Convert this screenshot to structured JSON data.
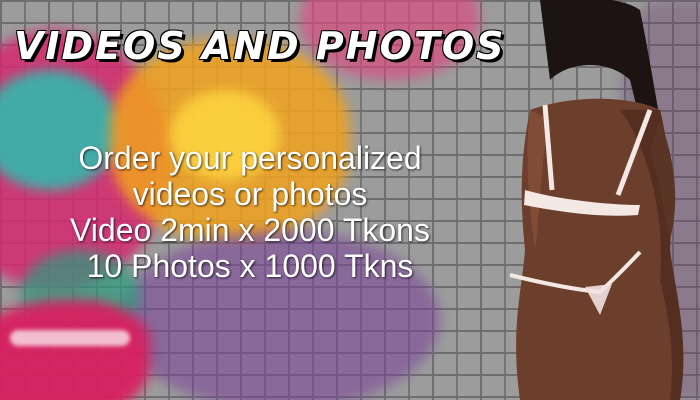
{
  "banner": {
    "title": "VIDEOS AND PHOTOS",
    "lines": [
      "Order your personalized",
      "videos or photos",
      "Video 2min x 2000 Tkons",
      "10 Photos x 1000 Tkns"
    ]
  },
  "colors": {
    "text": "#ffffff",
    "title_shadow": "#000000",
    "graffiti_pink": "#d6286f",
    "graffiti_orange": "#f2a21d",
    "graffiti_teal": "#2bbfb0",
    "wall": "#9c9c9c"
  }
}
